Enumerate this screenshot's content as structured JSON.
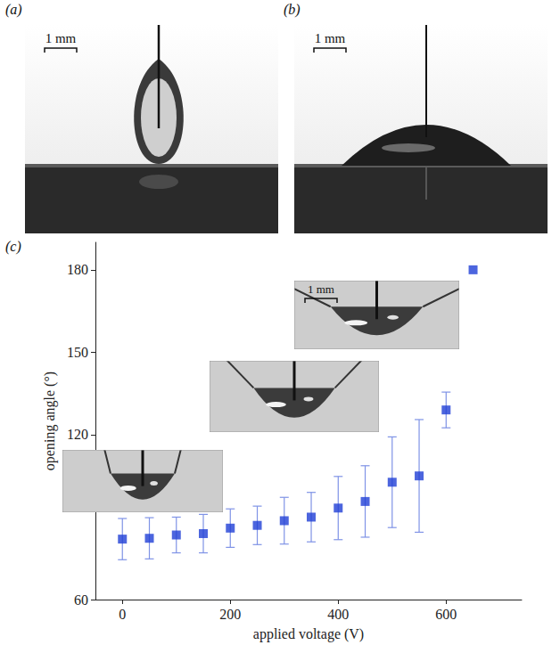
{
  "panels": [
    {
      "label": "(a)",
      "scale_bar": "1 mm"
    },
    {
      "label": "(b)",
      "scale_bar": "1 mm"
    }
  ],
  "chart_data": {
    "label": "(c)",
    "type": "scatter",
    "xlabel": "applied voltage (V)",
    "ylabel": "opening angle (°)",
    "x": [
      0,
      50,
      100,
      150,
      200,
      250,
      300,
      350,
      400,
      450,
      500,
      550,
      600,
      650
    ],
    "values": [
      82,
      82.3,
      83.5,
      84,
      86,
      87,
      88.7,
      90,
      93.3,
      95.7,
      102.7,
      105,
      129,
      180
    ],
    "errors": [
      7.5,
      7.5,
      6.5,
      7,
      7,
      7,
      8.5,
      9,
      11.5,
      13,
      16.5,
      20.5,
      6.5,
      null
    ],
    "color": "#1f3fd6",
    "marker": "square",
    "xlim": [
      -50,
      740
    ],
    "ylim": [
      60,
      190
    ],
    "xticks": [
      0,
      200,
      400,
      600
    ],
    "yticks": [
      60,
      120,
      150,
      180
    ],
    "grid": false,
    "inset_scale_bar": "1 mm"
  }
}
